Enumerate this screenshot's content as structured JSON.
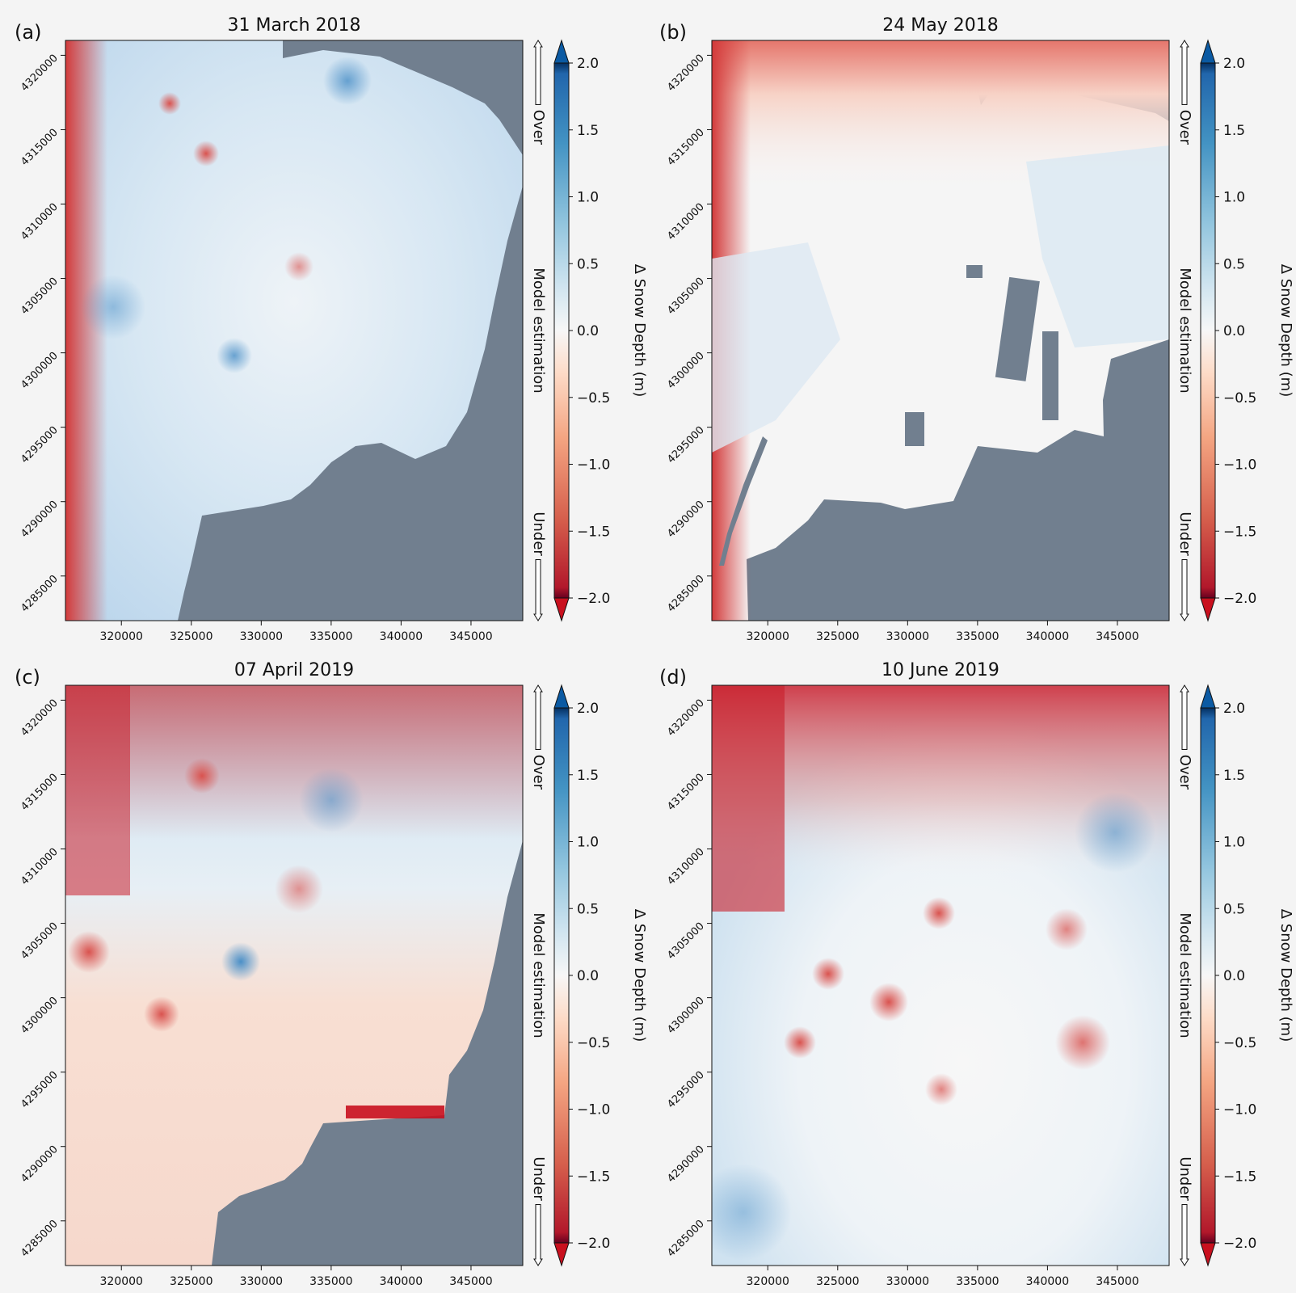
{
  "colorbar": {
    "label": "Δ Snow Depth (m)",
    "ticks": [
      "2.0",
      "1.5",
      "1.0",
      "0.5",
      "0.0",
      "−0.5",
      "−1.0",
      "−1.5",
      "−2.0"
    ],
    "tick_values": [
      2.0,
      1.5,
      1.0,
      0.5,
      0.0,
      -0.5,
      -1.0,
      -1.5,
      -2.0
    ],
    "range": [
      -2.0,
      2.0
    ],
    "colormap": "RdBu",
    "extend": "both",
    "annotation_over": "Over",
    "annotation_middle": "Model estimation",
    "annotation_under": "Under"
  },
  "colors": {
    "nodata": "#717f8f",
    "max_positive": "#0b5aa3",
    "max_negative": "#c9101e",
    "background": "#f4f4f4"
  },
  "chart_data": [
    {
      "type": "heatmap",
      "panel_label": "(a)",
      "title": "31 March 2018",
      "x_ticks": [
        "320000",
        "325000",
        "330000",
        "335000",
        "340000",
        "345000"
      ],
      "y_ticks": [
        "4285000",
        "4290000",
        "4295000",
        "4300000",
        "4305000",
        "4310000",
        "4315000",
        "4320000"
      ],
      "xlim": [
        316000,
        348700
      ],
      "ylim": [
        4321000,
        4282000
      ],
      "mean_delta_m": 0.5,
      "pattern": "mostly positive (over-estimation), negative along western ridge"
    },
    {
      "type": "heatmap",
      "panel_label": "(b)",
      "title": "24 May 2018",
      "x_ticks": [
        "320000",
        "325000",
        "330000",
        "335000",
        "340000",
        "345000"
      ],
      "y_ticks": [
        "4285000",
        "4290000",
        "4295000",
        "4300000",
        "4305000",
        "4310000",
        "4315000",
        "4320000"
      ],
      "xlim": [
        316000,
        348700
      ],
      "ylim": [
        4321000,
        4282000
      ],
      "mean_delta_m": 0.1,
      "pattern": "near zero in centre, negative in northwest and north"
    },
    {
      "type": "heatmap",
      "panel_label": "(c)",
      "title": "07 April 2019",
      "x_ticks": [
        "320000",
        "325000",
        "330000",
        "335000",
        "340000",
        "345000"
      ],
      "y_ticks": [
        "4285000",
        "4290000",
        "4295000",
        "4300000",
        "4305000",
        "4310000",
        "4315000",
        "4320000"
      ],
      "xlim": [
        316000,
        348700
      ],
      "ylim": [
        4321000,
        4282000
      ],
      "mean_delta_m": -0.2,
      "pattern": "strong negative northwest, mixed north, slightly negative south"
    },
    {
      "type": "heatmap",
      "panel_label": "(d)",
      "title": "10 June 2019",
      "x_ticks": [
        "320000",
        "325000",
        "330000",
        "335000",
        "340000",
        "345000"
      ],
      "y_ticks": [
        "4285000",
        "4290000",
        "4295000",
        "4300000",
        "4305000",
        "4310000",
        "4315000",
        "4320000"
      ],
      "xlim": [
        316000,
        348700
      ],
      "ylim": [
        4321000,
        4282000
      ],
      "mean_delta_m": 0.0,
      "pattern": "strong negative north, positive fringes, near zero centre"
    }
  ]
}
